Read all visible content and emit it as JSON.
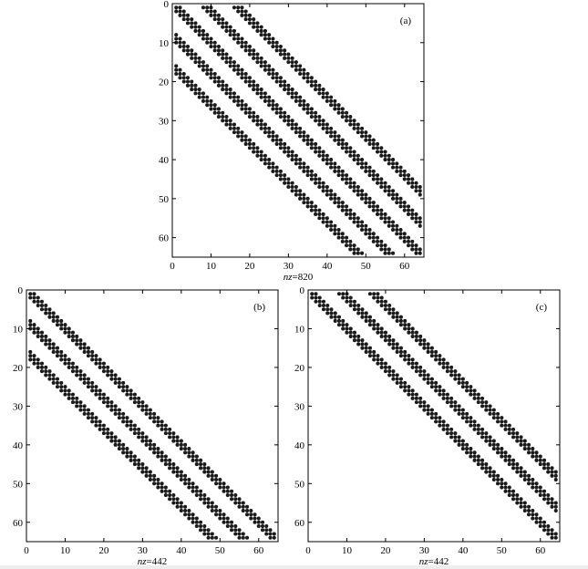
{
  "chart_data": [
    {
      "type": "scatter",
      "panel_label": "(a)",
      "xlabel_prefix": "nz",
      "xlabel_value": "=820",
      "xlim": [
        0,
        65
      ],
      "ylim": [
        0,
        65
      ],
      "y_inverted": true,
      "xticks": [
        0,
        10,
        20,
        30,
        40,
        50,
        60
      ],
      "yticks": [
        0,
        10,
        20,
        30,
        40,
        50,
        60
      ],
      "bands": [
        {
          "offset": 0,
          "width": 3
        },
        {
          "offset": 8,
          "width": 3
        },
        {
          "offset": 16,
          "width": 3
        },
        {
          "offset": -8,
          "width": 3
        },
        {
          "offset": -16,
          "width": 3
        }
      ]
    },
    {
      "type": "scatter",
      "panel_label": "(b)",
      "xlabel_prefix": "nz",
      "xlabel_value": "=442",
      "xlim": [
        0,
        65
      ],
      "ylim": [
        0,
        65
      ],
      "y_inverted": true,
      "xticks": [
        0,
        10,
        20,
        30,
        40,
        50,
        60
      ],
      "yticks": [
        0,
        10,
        20,
        30,
        40,
        50,
        60
      ],
      "bands": [
        {
          "offset": 0,
          "width": 3
        },
        {
          "offset": -8,
          "width": 3
        },
        {
          "offset": -16,
          "width": 3
        }
      ]
    },
    {
      "type": "scatter",
      "panel_label": "(c)",
      "xlabel_prefix": "nz",
      "xlabel_value": "=442",
      "xlim": [
        0,
        65
      ],
      "ylim": [
        0,
        65
      ],
      "y_inverted": true,
      "xticks": [
        0,
        10,
        20,
        30,
        40,
        50,
        60
      ],
      "yticks": [
        0,
        10,
        20,
        30,
        40,
        50,
        60
      ],
      "bands": [
        {
          "offset": 0,
          "width": 3
        },
        {
          "offset": 8,
          "width": 3
        },
        {
          "offset": 16,
          "width": 3
        }
      ]
    }
  ]
}
